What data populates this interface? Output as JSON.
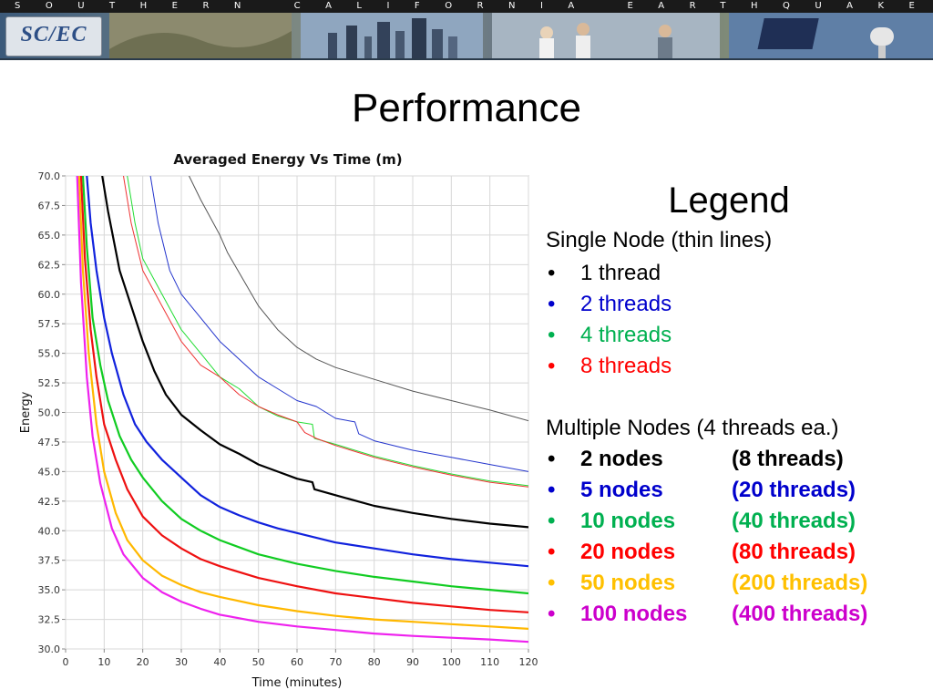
{
  "header": {
    "banner_text": "SOUTHERN CALIFORNIA EARTHQUAKE CENTER",
    "logo_text": "SC/EC"
  },
  "slide": {
    "title": "Performance"
  },
  "legend": {
    "title": "Legend",
    "single_heading": "Single Node (thin lines)",
    "single_items": [
      {
        "label": "1 thread",
        "color": "#000000"
      },
      {
        "label": "2 threads",
        "color": "#0000cc"
      },
      {
        "label": "4 threads",
        "color": "#00b050"
      },
      {
        "label": "8 threads",
        "color": "#ff0000"
      }
    ],
    "multi_heading": "Multiple Nodes (4 threads ea.)",
    "multi_items": [
      {
        "nodes": "2 nodes",
        "threads": "(8 threads)",
        "color": "#000000"
      },
      {
        "nodes": "5 nodes",
        "threads": "(20 threads)",
        "color": "#0000cc"
      },
      {
        "nodes": "10 nodes",
        "threads": "(40 threads)",
        "color": "#00b050"
      },
      {
        "nodes": "20 nodes",
        "threads": "(80 threads)",
        "color": "#ff0000"
      },
      {
        "nodes": "50 nodes",
        "threads": "(200 threads)",
        "color": "#ffc000"
      },
      {
        "nodes": "100 nodes",
        "threads": "(400 threads)",
        "color": "#cc00cc"
      }
    ],
    "bullet": "•"
  },
  "chart_data": {
    "type": "line",
    "title": "Averaged Energy Vs Time (m)",
    "xlabel": "Time (minutes)",
    "ylabel": "Energy",
    "xlim": [
      0,
      120
    ],
    "ylim": [
      30,
      70
    ],
    "xticks": [
      0,
      10,
      20,
      30,
      40,
      50,
      60,
      70,
      80,
      90,
      100,
      110,
      120
    ],
    "yticks": [
      30.0,
      32.5,
      35.0,
      37.5,
      40.0,
      42.5,
      45.0,
      47.5,
      50.0,
      52.5,
      55.0,
      57.5,
      60.0,
      62.5,
      65.0,
      67.5,
      70.0
    ],
    "grid": true,
    "legend_position": "none",
    "series": [
      {
        "color": "#555555",
        "width": 1.0,
        "points": [
          [
            32,
            70
          ],
          [
            35,
            68
          ],
          [
            40,
            65
          ],
          [
            42,
            63.5
          ],
          [
            50,
            59
          ],
          [
            55,
            57
          ],
          [
            60,
            55.5
          ],
          [
            65,
            54.5
          ],
          [
            70,
            53.8
          ],
          [
            80,
            52.8
          ],
          [
            90,
            51.8
          ],
          [
            100,
            51
          ],
          [
            110,
            50.2
          ],
          [
            120,
            49.3
          ]
        ]
      },
      {
        "color": "#2233cc",
        "width": 1.0,
        "points": [
          [
            22,
            70
          ],
          [
            24,
            66
          ],
          [
            27,
            62
          ],
          [
            30,
            60
          ],
          [
            35,
            58
          ],
          [
            40,
            56
          ],
          [
            45,
            54.5
          ],
          [
            50,
            53
          ],
          [
            55,
            52
          ],
          [
            60,
            51
          ],
          [
            65,
            50.5
          ],
          [
            70,
            49.5
          ],
          [
            75,
            49.2
          ],
          [
            76,
            48.2
          ],
          [
            80,
            47.6
          ],
          [
            90,
            46.8
          ],
          [
            100,
            46.2
          ],
          [
            110,
            45.6
          ],
          [
            120,
            45
          ]
        ]
      },
      {
        "color": "#22dd33",
        "width": 1.0,
        "points": [
          [
            16,
            70
          ],
          [
            18,
            66
          ],
          [
            20,
            63
          ],
          [
            25,
            60
          ],
          [
            30,
            57
          ],
          [
            35,
            55
          ],
          [
            40,
            53
          ],
          [
            45,
            52
          ],
          [
            50,
            50.5
          ],
          [
            55,
            49.7
          ],
          [
            60,
            49.2
          ],
          [
            64,
            49
          ],
          [
            64.5,
            47.8
          ],
          [
            70,
            47.3
          ],
          [
            80,
            46.3
          ],
          [
            90,
            45.5
          ],
          [
            100,
            44.8
          ],
          [
            110,
            44.2
          ],
          [
            120,
            43.8
          ]
        ]
      },
      {
        "color": "#ee3333",
        "width": 1.0,
        "points": [
          [
            15,
            70
          ],
          [
            17,
            66
          ],
          [
            20,
            62
          ],
          [
            25,
            59
          ],
          [
            30,
            56
          ],
          [
            35,
            54
          ],
          [
            40,
            53
          ],
          [
            45,
            51.5
          ],
          [
            50,
            50.5
          ],
          [
            55,
            49.8
          ],
          [
            60,
            49.2
          ],
          [
            62,
            48.3
          ],
          [
            65,
            47.8
          ],
          [
            70,
            47.2
          ],
          [
            80,
            46.2
          ],
          [
            90,
            45.4
          ],
          [
            100,
            44.7
          ],
          [
            110,
            44.1
          ],
          [
            120,
            43.7
          ]
        ]
      },
      {
        "color": "#000000",
        "width": 2.2,
        "points": [
          [
            9.5,
            70
          ],
          [
            11,
            67
          ],
          [
            14,
            62
          ],
          [
            17,
            59
          ],
          [
            20,
            56
          ],
          [
            23,
            53.5
          ],
          [
            26,
            51.5
          ],
          [
            30,
            49.8
          ],
          [
            35,
            48.5
          ],
          [
            40,
            47.3
          ],
          [
            45,
            46.5
          ],
          [
            50,
            45.6
          ],
          [
            55,
            45
          ],
          [
            60,
            44.4
          ],
          [
            64,
            44.1
          ],
          [
            64.5,
            43.5
          ],
          [
            70,
            43
          ],
          [
            80,
            42.1
          ],
          [
            90,
            41.5
          ],
          [
            100,
            41
          ],
          [
            110,
            40.6
          ],
          [
            120,
            40.3
          ]
        ]
      },
      {
        "color": "#1122dd",
        "width": 2.2,
        "points": [
          [
            5.5,
            70
          ],
          [
            6.5,
            66
          ],
          [
            8,
            62
          ],
          [
            10,
            58
          ],
          [
            12,
            55
          ],
          [
            15,
            51.5
          ],
          [
            18,
            49
          ],
          [
            21,
            47.5
          ],
          [
            25,
            46
          ],
          [
            30,
            44.5
          ],
          [
            35,
            43
          ],
          [
            40,
            42
          ],
          [
            45,
            41.3
          ],
          [
            50,
            40.7
          ],
          [
            55,
            40.2
          ],
          [
            60,
            39.8
          ],
          [
            70,
            39
          ],
          [
            80,
            38.5
          ],
          [
            90,
            38
          ],
          [
            100,
            37.6
          ],
          [
            110,
            37.3
          ],
          [
            120,
            37
          ]
        ]
      },
      {
        "color": "#11cc22",
        "width": 2.2,
        "points": [
          [
            4.5,
            70
          ],
          [
            5.5,
            64
          ],
          [
            7,
            58
          ],
          [
            9,
            54
          ],
          [
            11,
            51
          ],
          [
            14,
            48
          ],
          [
            17,
            46
          ],
          [
            20,
            44.5
          ],
          [
            25,
            42.5
          ],
          [
            30,
            41
          ],
          [
            35,
            40
          ],
          [
            40,
            39.2
          ],
          [
            50,
            38
          ],
          [
            60,
            37.2
          ],
          [
            70,
            36.6
          ],
          [
            80,
            36.1
          ],
          [
            90,
            35.7
          ],
          [
            100,
            35.3
          ],
          [
            110,
            35
          ],
          [
            120,
            34.7
          ]
        ]
      },
      {
        "color": "#ee1111",
        "width": 2.2,
        "points": [
          [
            4,
            70
          ],
          [
            5,
            63
          ],
          [
            6.5,
            57
          ],
          [
            8,
            53
          ],
          [
            10,
            49
          ],
          [
            13,
            46
          ],
          [
            16,
            43.5
          ],
          [
            20,
            41.2
          ],
          [
            25,
            39.6
          ],
          [
            30,
            38.5
          ],
          [
            35,
            37.6
          ],
          [
            40,
            37
          ],
          [
            50,
            36
          ],
          [
            60,
            35.3
          ],
          [
            70,
            34.7
          ],
          [
            80,
            34.3
          ],
          [
            90,
            33.9
          ],
          [
            100,
            33.6
          ],
          [
            110,
            33.3
          ],
          [
            120,
            33.1
          ]
        ]
      },
      {
        "color": "#ffb800",
        "width": 2.2,
        "points": [
          [
            3.5,
            70
          ],
          [
            4.5,
            62
          ],
          [
            6,
            55
          ],
          [
            8,
            49
          ],
          [
            10,
            45
          ],
          [
            13,
            41.5
          ],
          [
            16,
            39.2
          ],
          [
            20,
            37.5
          ],
          [
            25,
            36.2
          ],
          [
            30,
            35.4
          ],
          [
            35,
            34.8
          ],
          [
            40,
            34.4
          ],
          [
            50,
            33.7
          ],
          [
            60,
            33.2
          ],
          [
            70,
            32.8
          ],
          [
            80,
            32.5
          ],
          [
            90,
            32.3
          ],
          [
            100,
            32.1
          ],
          [
            110,
            31.9
          ],
          [
            120,
            31.7
          ]
        ]
      },
      {
        "color": "#ee22ee",
        "width": 2.2,
        "points": [
          [
            3,
            70
          ],
          [
            4,
            61
          ],
          [
            5.5,
            53
          ],
          [
            7,
            48
          ],
          [
            9,
            44
          ],
          [
            12,
            40.2
          ],
          [
            15,
            38
          ],
          [
            20,
            36
          ],
          [
            25,
            34.8
          ],
          [
            30,
            34
          ],
          [
            35,
            33.4
          ],
          [
            40,
            32.9
          ],
          [
            50,
            32.3
          ],
          [
            60,
            31.9
          ],
          [
            70,
            31.6
          ],
          [
            80,
            31.3
          ],
          [
            90,
            31.1
          ],
          [
            100,
            30.95
          ],
          [
            110,
            30.8
          ],
          [
            120,
            30.6
          ]
        ]
      }
    ]
  }
}
